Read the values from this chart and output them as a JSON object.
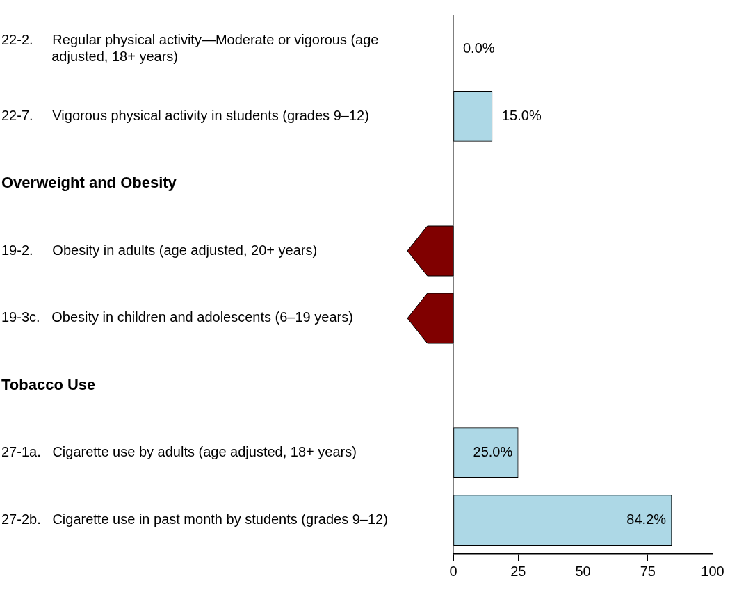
{
  "chart_data": {
    "type": "bar",
    "orientation": "horizontal",
    "categories": [
      "22-2. Regular physical activity—Moderate or vigorous (age adjusted, 18+ years)",
      "22-7. Vigorous physical activity in students (grades 9–12)",
      "Overweight and Obesity",
      "19-2. Obesity in adults (age adjusted, 20+ years)",
      "19-3c. Obesity in children and adolescents (6–19 years)",
      "Tobacco Use",
      "27-1a. Cigarette use by adults (age adjusted, 18+ years)",
      "27-2b. Cigarette use in past month by students (grades 9–12)"
    ],
    "values": [
      0,
      15,
      null,
      null,
      null,
      null,
      25,
      84.2
    ],
    "value_labels": [
      "0.0%",
      "15.0%",
      null,
      null,
      null,
      null,
      "25.0%",
      "84.2%"
    ],
    "color": "#add8e6",
    "xlim": [
      0,
      100
    ],
    "xticks": [
      0,
      25,
      50,
      75,
      100
    ],
    "grid": false,
    "legend": false
  }
}
